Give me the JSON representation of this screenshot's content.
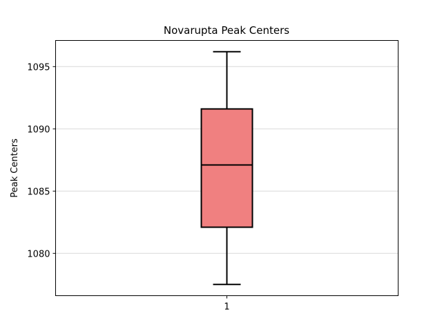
{
  "chart_data": {
    "type": "box",
    "title": "Novarupta Peak Centers",
    "xlabel": "",
    "ylabel": "Peak Centers",
    "categories": [
      "1"
    ],
    "series": [
      {
        "whisker_low": 1077.5,
        "q1": 1082.1,
        "median": 1087.1,
        "q3": 1091.6,
        "whisker_high": 1096.2
      }
    ],
    "ylim": [
      1076.6,
      1097.1
    ],
    "yticks": [
      1080,
      1085,
      1090,
      1095
    ],
    "grid": "horizontal",
    "box_color": "#f08080",
    "line_color": "#000000",
    "grid_color": "#d9d9d9"
  }
}
